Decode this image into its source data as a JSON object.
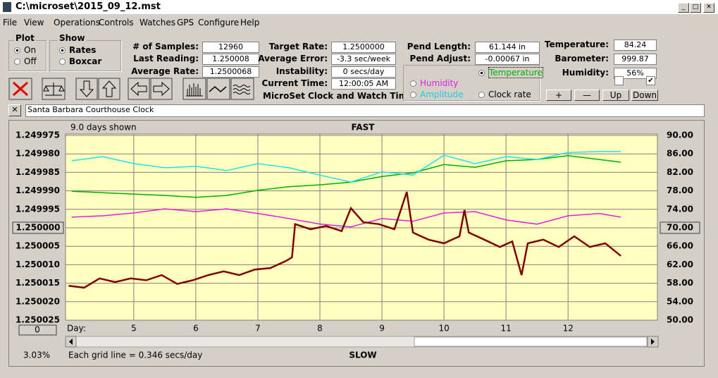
{
  "window": {
    "title": "C:\\microset\\2015_09_12.mst"
  },
  "menu": [
    "File",
    "View",
    "Operations",
    "Controls",
    "Watches",
    "GPS",
    "Configure",
    "Help"
  ],
  "plot_group": {
    "label": "Plot",
    "options": [
      "On",
      "Off"
    ]
  },
  "show_group": {
    "label": "Show",
    "options": [
      "Rates",
      "Boxcar"
    ]
  },
  "readouts": [
    {
      "label": "# of Samples:",
      "value": "12960"
    },
    {
      "label": "Last Reading:",
      "value": "1.250008"
    },
    {
      "label": "Average Rate:",
      "value": "1.2500068"
    },
    {
      "label": "Target Rate:",
      "value": "1.2500000"
    },
    {
      "label": "Average Error:",
      "value": "-3.3 sec/week"
    },
    {
      "label": "Instability:",
      "value": "0 secs/day"
    },
    {
      "label": "Current Time:",
      "value": "12:00:05 AM"
    },
    {
      "label": "Pend Length:",
      "value": "61.144 in"
    },
    {
      "label": "Pend Adjust:",
      "value": "-0.00067 in"
    },
    {
      "label": "Temperature:",
      "value": "84.24"
    },
    {
      "label": "Barometer:",
      "value": "999.87"
    },
    {
      "label": "Humidity:",
      "value": "56%"
    }
  ],
  "app_name": "MicroSet Clock and Watch Timer",
  "buttons": [
    "+",
    "—",
    "Up",
    "Down"
  ],
  "clock_name": "Santa Barbara Courthouse Clock",
  "chart_data": {
    "type": "line",
    "days_shown": "9.0 days shown",
    "top_label": "FAST",
    "bottom_label": "SLOW",
    "x_label": "Day:",
    "percent": "3.03%",
    "grid_note": "Each grid line = 0.346 secs/day",
    "zero_button": "0",
    "xlim": [
      3.9,
      13.44
    ],
    "xticks": [
      5,
      6,
      7,
      8,
      9,
      10,
      11,
      12
    ],
    "ylim": [
      1.249975,
      1.250025
    ],
    "y_inverted": true,
    "yticks": [
      1.249975,
      {
        "value": 1.24998,
        "label": "1.249980"
      },
      1.249985,
      {
        "value": 1.24999,
        "label": "1.249990"
      },
      1.249995,
      {
        "value": 1.25,
        "label": "1.250000"
      },
      1.250005,
      {
        "value": 1.25001,
        "label": "1.250010"
      },
      1.250015,
      {
        "value": 1.25002,
        "label": "1.250020"
      },
      1.250025
    ],
    "y2lim": [
      50,
      90
    ],
    "y2ticks": [
      {
        "value": 90,
        "label": "90.00"
      },
      {
        "value": 86,
        "label": "86.00"
      },
      {
        "value": 82,
        "label": "82.00"
      },
      {
        "value": 78,
        "label": "78.00"
      },
      {
        "value": 74,
        "label": "74.00"
      },
      {
        "value": 70,
        "label": "70.00"
      },
      {
        "value": 66,
        "label": "66.00"
      },
      {
        "value": 62,
        "label": "62.00"
      },
      {
        "value": 58,
        "label": "58.00"
      },
      {
        "value": 54,
        "label": "54.00"
      },
      {
        "value": 50,
        "label": "50.00"
      }
    ],
    "grid": true,
    "series": [
      {
        "name": "Temperature",
        "color": "#00b000",
        "axis": "y2",
        "x": [
          4,
          4.5,
          5,
          5.5,
          6,
          6.5,
          7,
          7.5,
          8,
          8.5,
          9,
          9.5,
          10,
          10.5,
          11,
          11.5,
          12,
          12.5,
          12.85
        ],
        "values": [
          77.9,
          77.6,
          77.3,
          77.0,
          76.6,
          77.0,
          78.1,
          78.9,
          79.3,
          79.9,
          81.1,
          81.9,
          83.7,
          83.1,
          84.5,
          84.8,
          85.6,
          84.8,
          84.2
        ]
      },
      {
        "name": "Humidity",
        "color": "#e020e0",
        "axis": "y2",
        "x": [
          4,
          4.5,
          5,
          5.5,
          6,
          6.5,
          7,
          7.5,
          8,
          8.5,
          9,
          9.5,
          10,
          10.5,
          11,
          11.5,
          12,
          12.5,
          12.85
        ],
        "values": [
          72.3,
          72.6,
          73.2,
          74.1,
          73.5,
          74.1,
          73.1,
          72.0,
          70.8,
          70.2,
          72.0,
          71.4,
          73.2,
          73.5,
          71.7,
          70.8,
          72.6,
          73.1,
          72.3
        ]
      },
      {
        "name": "Amplitude",
        "color": "#20e0f0",
        "axis": "y2",
        "x": [
          4,
          4.5,
          5,
          5.5,
          6,
          6.5,
          7,
          7.5,
          8,
          8.5,
          9,
          9.5,
          10,
          10.5,
          11,
          11.5,
          12,
          12.5,
          12.85
        ],
        "values": [
          84.5,
          85.4,
          83.9,
          83.0,
          83.3,
          82.4,
          83.9,
          83.0,
          81.4,
          79.9,
          82.1,
          81.4,
          85.7,
          83.9,
          85.4,
          84.8,
          86.3,
          86.5,
          86.5
        ]
      },
      {
        "name": "Clock rate",
        "color": "#800000",
        "x": [
          3.95,
          4.2,
          4.45,
          4.7,
          4.95,
          5.2,
          5.45,
          5.7,
          5.95,
          6.2,
          6.45,
          6.7,
          6.95,
          7.2,
          7.45,
          7.55,
          7.6,
          7.85,
          8.1,
          8.35,
          8.5,
          8.7,
          8.95,
          9.2,
          9.4,
          9.5,
          9.75,
          10.0,
          10.25,
          10.33,
          10.4,
          10.65,
          10.9,
          11.1,
          11.25,
          11.35,
          11.6,
          11.85,
          12.1,
          12.35,
          12.6,
          12.85
        ],
        "values": [
          1.2500157,
          1.2500162,
          1.2500137,
          1.2500147,
          1.2500137,
          1.2500142,
          1.2500128,
          1.2500152,
          1.2500142,
          1.2500128,
          1.2500118,
          1.2500128,
          1.2500113,
          1.2500109,
          1.250009,
          1.250008,
          1.249999,
          1.2500004,
          1.2499995,
          1.2500009,
          1.2499947,
          1.2499985,
          1.249999,
          1.2500004,
          1.2499903,
          1.2500013,
          1.2500032,
          1.2500042,
          1.2500023,
          1.2499952,
          1.2500013,
          1.2500032,
          1.2500052,
          1.2500037,
          1.2500128,
          1.2500042,
          1.2500032,
          1.2500052,
          1.2500023,
          1.2500052,
          1.2500042,
          1.2500076
        ]
      }
    ]
  }
}
